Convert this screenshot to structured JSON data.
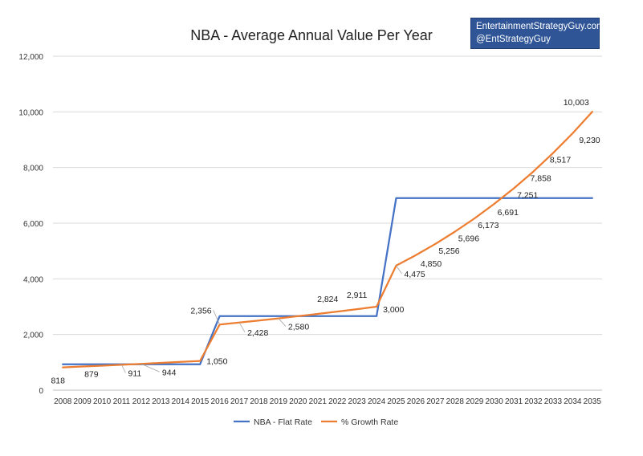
{
  "watermark": {
    "line1": "EntertainmentStrategyGuy.com",
    "line2": "@EntStrategyGuy"
  },
  "chart_data": {
    "type": "line",
    "title": "NBA - Average Annual Value Per Year",
    "xlabel": "",
    "ylabel": "",
    "x": [
      "2008",
      "2009",
      "2010",
      "2011",
      "2012",
      "2013",
      "2014",
      "2015",
      "2016",
      "2017",
      "2018",
      "2019",
      "2020",
      "2021",
      "2022",
      "2023",
      "2024",
      "2025",
      "2026",
      "2027",
      "2028",
      "2029",
      "2030",
      "2031",
      "2032",
      "2033",
      "2034",
      "2035"
    ],
    "ylim": [
      0,
      12000
    ],
    "yticks": [
      0,
      2000,
      4000,
      6000,
      8000,
      10000,
      12000
    ],
    "ytick_labels": [
      "0",
      "2,000",
      "4,000",
      "6,000",
      "8,000",
      "10,000",
      "12,000"
    ],
    "grid": true,
    "legend_position": "bottom",
    "series": [
      {
        "name": "NBA - Flat Rate",
        "color": "#4472c4",
        "values": [
          930,
          930,
          930,
          930,
          930,
          930,
          930,
          930,
          2660,
          2660,
          2660,
          2660,
          2660,
          2660,
          2660,
          2660,
          2660,
          6900,
          6900,
          6900,
          6900,
          6900,
          6900,
          6900,
          6900,
          6900,
          6900,
          6900
        ]
      },
      {
        "name": "% Growth Rate",
        "color": "#ed7d31",
        "values": [
          818,
          850,
          879,
          911,
          944,
          980,
          1015,
          1050,
          2356,
          2428,
          2500,
          2580,
          2660,
          2740,
          2824,
          2911,
          3000,
          4475,
          4850,
          5256,
          5696,
          6173,
          6691,
          7251,
          7858,
          8517,
          9230,
          10003
        ]
      }
    ],
    "data_labels": [
      {
        "x": "2008",
        "text": "818"
      },
      {
        "x": "2010",
        "text": "879"
      },
      {
        "x": "2011",
        "text": "911"
      },
      {
        "x": "2012",
        "text": "944"
      },
      {
        "x": "2015",
        "text": "1,050"
      },
      {
        "x": "2016",
        "text": "2,356"
      },
      {
        "x": "2017",
        "text": "2,428"
      },
      {
        "x": "2019",
        "text": "2,580"
      },
      {
        "x": "2022",
        "text": "2,824"
      },
      {
        "x": "2023",
        "text": "2,911"
      },
      {
        "x": "2024",
        "text": "3,000"
      },
      {
        "x": "2025",
        "text": "4,475"
      },
      {
        "x": "2026",
        "text": "4,850"
      },
      {
        "x": "2027",
        "text": "5,256"
      },
      {
        "x": "2028",
        "text": "5,696"
      },
      {
        "x": "2029",
        "text": "6,173"
      },
      {
        "x": "2030",
        "text": "6,691"
      },
      {
        "x": "2031",
        "text": "7,251"
      },
      {
        "x": "2032",
        "text": "7,858"
      },
      {
        "x": "2033",
        "text": "8,517"
      },
      {
        "x": "2034",
        "text": "9,230"
      },
      {
        "x": "2035",
        "text": "10,003"
      }
    ]
  }
}
